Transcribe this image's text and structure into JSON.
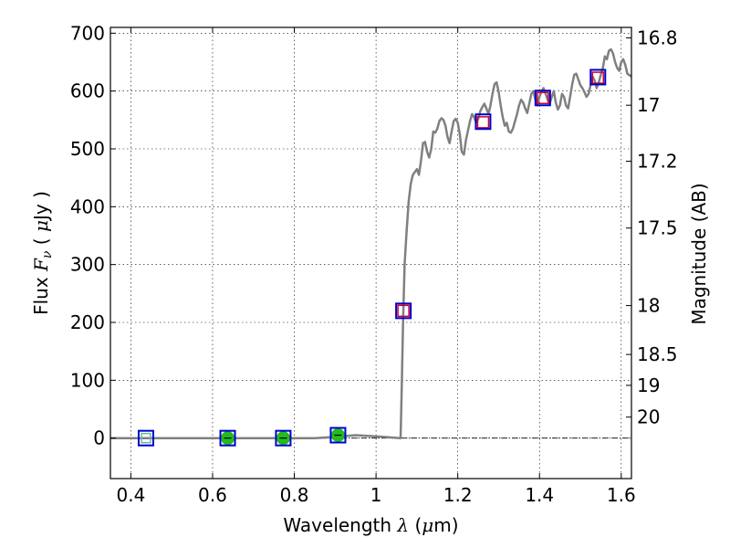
{
  "chart_data": {
    "type": "scatter",
    "xlabel_parts": [
      "Wavelength",
      "λ",
      "(",
      "μ",
      "m)"
    ],
    "ylabel_parts": [
      "Flux",
      "F",
      "ν",
      "(",
      "μ",
      "Jy",
      ")"
    ],
    "y2label": "Magnitude (AB)",
    "xlim": [
      0.35,
      1.625
    ],
    "ylim": [
      -70,
      710
    ],
    "x_ticks": [
      0.4,
      0.6,
      0.8,
      1.0,
      1.2,
      1.4,
      1.6
    ],
    "x_tick_labels": [
      "0.4",
      "0.6",
      "0.8",
      "1",
      "1.2",
      "1.4",
      "1.6"
    ],
    "y_ticks": [
      0,
      100,
      200,
      300,
      400,
      500,
      600,
      700
    ],
    "y_tick_labels": [
      "0",
      "100",
      "200",
      "300",
      "400",
      "500",
      "600",
      "700"
    ],
    "y2_ticks": [
      16.8,
      17,
      17.2,
      17.5,
      18,
      18.5,
      19,
      20
    ],
    "y2_tick_labels": [
      "16.8",
      "17",
      "17.2",
      "17.5",
      "18",
      "18.5",
      "19",
      "20"
    ],
    "grid": true,
    "zero_line": true,
    "colors": {
      "spectrum": "#808080",
      "observed_box": "#0000cc",
      "model_box": "#cc0033",
      "detection": "#22bb22",
      "teal_marker": "#66bbaa"
    },
    "spectrum": {
      "x": [
        0.35,
        0.45,
        0.55,
        0.65,
        0.75,
        0.85,
        0.9,
        0.95,
        1.0,
        1.06,
        1.063,
        1.066,
        1.07,
        1.075,
        1.08,
        1.085,
        1.09,
        1.1,
        1.105,
        1.11,
        1.115,
        1.12,
        1.125,
        1.13,
        1.135,
        1.14,
        1.145,
        1.15,
        1.155,
        1.16,
        1.165,
        1.17,
        1.175,
        1.18,
        1.185,
        1.19,
        1.195,
        1.2,
        1.205,
        1.21,
        1.215,
        1.22,
        1.225,
        1.23,
        1.235,
        1.24,
        1.245,
        1.25,
        1.255,
        1.26,
        1.265,
        1.27,
        1.275,
        1.28,
        1.285,
        1.29,
        1.295,
        1.3,
        1.305,
        1.31,
        1.315,
        1.32,
        1.325,
        1.33,
        1.335,
        1.34,
        1.345,
        1.35,
        1.355,
        1.36,
        1.365,
        1.37,
        1.375,
        1.38,
        1.385,
        1.39,
        1.395,
        1.4,
        1.405,
        1.41,
        1.415,
        1.42,
        1.425,
        1.43,
        1.435,
        1.44,
        1.445,
        1.45,
        1.455,
        1.46,
        1.465,
        1.47,
        1.475,
        1.48,
        1.485,
        1.49,
        1.495,
        1.5,
        1.505,
        1.51,
        1.515,
        1.52,
        1.525,
        1.53,
        1.535,
        1.54,
        1.545,
        1.55,
        1.555,
        1.56,
        1.565,
        1.57,
        1.575,
        1.58,
        1.585,
        1.59,
        1.595,
        1.6,
        1.605,
        1.61,
        1.615,
        1.625
      ],
      "y": [
        0,
        0,
        0,
        0,
        0,
        0,
        2,
        5,
        3,
        0,
        90,
        200,
        300,
        360,
        410,
        440,
        455,
        465,
        455,
        480,
        510,
        512,
        495,
        485,
        500,
        530,
        528,
        535,
        548,
        553,
        550,
        540,
        520,
        510,
        530,
        548,
        552,
        545,
        525,
        495,
        490,
        515,
        532,
        548,
        560,
        555,
        545,
        552,
        565,
        572,
        578,
        570,
        560,
        575,
        595,
        612,
        615,
        598,
        575,
        555,
        540,
        545,
        530,
        528,
        535,
        548,
        560,
        575,
        585,
        580,
        570,
        562,
        578,
        595,
        600,
        585,
        575,
        590,
        600,
        605,
        595,
        585,
        578,
        590,
        600,
        580,
        568,
        575,
        595,
        590,
        575,
        570,
        590,
        612,
        628,
        630,
        620,
        610,
        605,
        598,
        590,
        595,
        610,
        625,
        618,
        605,
        615,
        628,
        640,
        660,
        655,
        670,
        672,
        665,
        650,
        640,
        635,
        650,
        655,
        645,
        630,
        625
      ]
    },
    "observed_boxes": {
      "x": [
        0.437,
        0.637,
        0.773,
        0.907,
        1.067,
        1.262,
        1.408,
        1.543
      ],
      "y": [
        0,
        0,
        0,
        5,
        220,
        547,
        588,
        624
      ]
    },
    "model_boxes": {
      "x": [
        1.067,
        1.262,
        1.408,
        1.543
      ],
      "y": [
        220,
        546,
        588,
        623
      ]
    },
    "detections": {
      "x": [
        0.637,
        0.773,
        0.907
      ],
      "y": [
        0,
        0,
        5
      ],
      "yerr": [
        2,
        2,
        2
      ]
    },
    "upper_limit_marker": {
      "x": [
        0.437
      ],
      "y": [
        0
      ]
    }
  }
}
